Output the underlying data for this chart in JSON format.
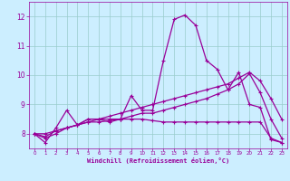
{
  "xlabel": "Windchill (Refroidissement éolien,°C)",
  "bg_color": "#cceeff",
  "line_color": "#990099",
  "grid_color": "#99cccc",
  "xlim": [
    -0.5,
    23.5
  ],
  "ylim": [
    7.5,
    12.5
  ],
  "yticks": [
    8,
    9,
    10,
    11,
    12
  ],
  "xticks": [
    0,
    1,
    2,
    3,
    4,
    5,
    6,
    7,
    8,
    9,
    10,
    11,
    12,
    13,
    14,
    15,
    16,
    17,
    18,
    19,
    20,
    21,
    22,
    23
  ],
  "series": [
    [
      8.0,
      7.7,
      8.2,
      8.8,
      8.3,
      8.5,
      8.5,
      8.4,
      8.5,
      9.3,
      8.8,
      8.8,
      10.5,
      11.9,
      12.05,
      11.7,
      10.5,
      10.2,
      9.5,
      10.1,
      9.0,
      8.9,
      7.8,
      7.7
    ],
    [
      8.0,
      7.9,
      8.1,
      8.2,
      8.3,
      8.4,
      8.4,
      8.45,
      8.5,
      8.6,
      8.7,
      8.7,
      8.8,
      8.9,
      9.0,
      9.1,
      9.2,
      9.35,
      9.5,
      9.7,
      10.05,
      9.4,
      8.5,
      7.85
    ],
    [
      8.0,
      8.0,
      8.1,
      8.2,
      8.3,
      8.4,
      8.5,
      8.6,
      8.7,
      8.8,
      8.9,
      9.0,
      9.1,
      9.2,
      9.3,
      9.4,
      9.5,
      9.6,
      9.7,
      9.9,
      10.1,
      9.8,
      9.2,
      8.5
    ],
    [
      8.0,
      7.85,
      8.0,
      8.2,
      8.3,
      8.5,
      8.5,
      8.5,
      8.5,
      8.5,
      8.5,
      8.45,
      8.4,
      8.4,
      8.4,
      8.4,
      8.4,
      8.4,
      8.4,
      8.4,
      8.4,
      8.4,
      7.85,
      7.7
    ]
  ]
}
